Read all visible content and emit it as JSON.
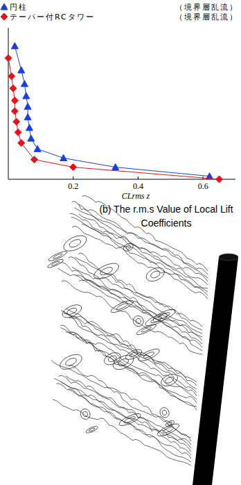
{
  "chart_data": {
    "type": "line",
    "x_label": "CLrms z",
    "caption": "(b) The r.m.s Value of  Local Lift Coefficients",
    "xlim": [
      0,
      0.7
    ],
    "xticks": [
      0.2,
      0.4,
      0.6
    ],
    "ylim": [
      0,
      1
    ],
    "tick_labels": "x",
    "legend": "top",
    "series": [
      {
        "name": "円柱",
        "condition": "（境界層乱流）",
        "color": "#1a3fe0",
        "marker": "triangle",
        "line_style": "solid",
        "x": [
          0.02,
          0.04,
          0.05,
          0.055,
          0.06,
          0.06,
          0.065,
          0.07,
          0.09,
          0.17,
          0.33,
          0.62
        ],
        "values": [
          0.88,
          0.72,
          0.63,
          0.55,
          0.48,
          0.41,
          0.34,
          0.27,
          0.2,
          0.14,
          0.08,
          0.02
        ]
      },
      {
        "name": "テーパー付RCタワー",
        "condition": "（境界層乱流）",
        "color": "#e5101a",
        "marker": "diamond",
        "line_style": "solid",
        "x": [
          0.0,
          0.01,
          0.015,
          0.02,
          0.02,
          0.025,
          0.03,
          0.04,
          0.08,
          0.2,
          0.65
        ],
        "values": [
          0.8,
          0.68,
          0.6,
          0.52,
          0.45,
          0.38,
          0.31,
          0.24,
          0.13,
          0.08,
          0.0
        ]
      }
    ]
  }
}
